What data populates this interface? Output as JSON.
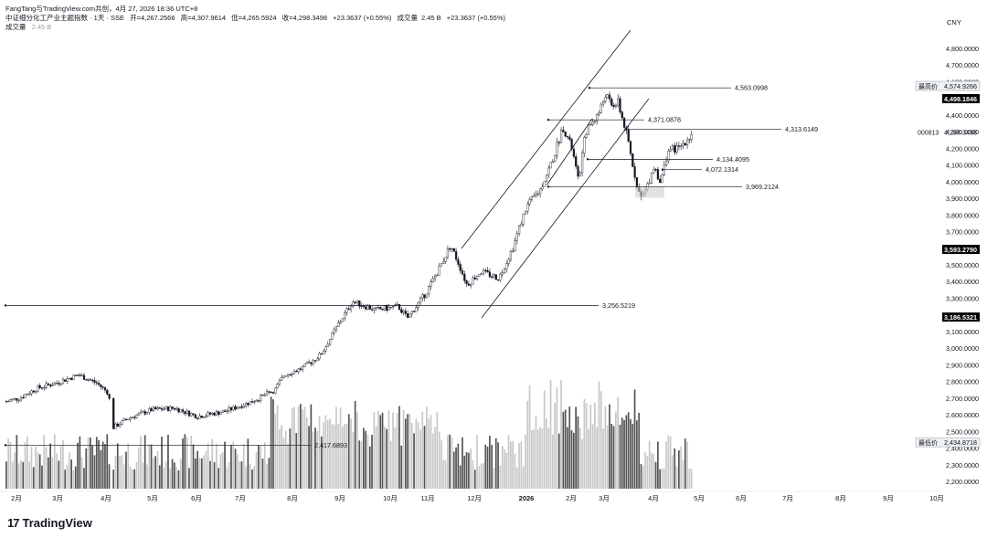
{
  "header": {
    "author": "FangTang与TradingView.com共创，4月 27, 2026 18:36 UTC+8",
    "symbol": "中证细分化工产业主题指数 · 1天 · SSE",
    "open": "开=4,267.2566",
    "high": "高=4,307.9614",
    "low": "低=4,265.5924",
    "close": "收=4,298.3498",
    "change": "+23.3637 (+0.55%)",
    "volume_label": "成交量",
    "volume_inline": "2.45 B",
    "volume_change": "+23.3637 (+0.55%)",
    "volume_row_label": "成交量",
    "volume_row_value": "2.45 B"
  },
  "currency": "CNY",
  "logo": {
    "mark": "17",
    "text": "TradingView"
  },
  "colors": {
    "up_candle": "#ffffff",
    "down_candle": "#131722",
    "line": "#131722",
    "vol_light": "#c8c8c8",
    "vol_dark": "#555555",
    "axis_text": "#131722",
    "label_black": "#000000"
  },
  "chart_data": {
    "type": "candlestick",
    "symbol_code": "000813",
    "last_price": "4,298.3498",
    "y_axis": {
      "min": 2200000,
      "max": 4900000,
      "ticks": [
        "4,800.0000",
        "4,700.0000",
        "4,600.0000",
        "4,500.0000",
        "4,400.0000",
        "4,300.0000",
        "4,200.0000",
        "4,100.0000",
        "4,000.0000",
        "3,900.0000",
        "3,800.0000",
        "3,700.0000",
        "3,600.0000",
        "3,500.0000",
        "3,400.0000",
        "3,300.0000",
        "3,200.0000",
        "3,100.0000",
        "3,000.0000",
        "2,900.0000",
        "2,800.0000",
        "2,700.0000",
        "2,600.0000",
        "2,500.0000",
        "2,400.0000",
        "2,300.0000",
        "2,200.0000"
      ]
    },
    "x_axis": {
      "ticks": [
        "2月",
        "3月",
        "4月",
        "5月",
        "6月",
        "7月",
        "8月",
        "9月",
        "10月",
        "11月",
        "12月",
        "2026",
        "2月",
        "3月",
        "4月",
        "5月",
        "6月",
        "7月",
        "8月",
        "9月",
        "10月"
      ]
    },
    "axis_labels": [
      {
        "text": "最高价",
        "value": "4,574.9266",
        "price": 4574.9266,
        "style": "outline"
      },
      {
        "text": "",
        "value": "4,498.1846",
        "price": 4498.1846,
        "style": "black"
      },
      {
        "text": "000813",
        "value": "4,298.3498",
        "price": 4298.3498,
        "style": "plain"
      },
      {
        "text": "",
        "value": "3,593.2790",
        "price": 3593.279,
        "style": "black"
      },
      {
        "text": "",
        "value": "3,186.5321",
        "price": 3186.5321,
        "style": "black"
      },
      {
        "text": "最低价",
        "value": "2,434.8718",
        "price": 2434.8718,
        "style": "outline"
      }
    ],
    "horizontal_levels": [
      {
        "label": "4,563.0998",
        "price": 4563.0998
      },
      {
        "label": "4,371.0878",
        "price": 4371.0878
      },
      {
        "label": "4,313.6149",
        "price": 4313.6149
      },
      {
        "label": "4,134.4095",
        "price": 4134.4095
      },
      {
        "label": "4,072.1314",
        "price": 4072.1314
      },
      {
        "label": "3,969.2124",
        "price": 3969.2124
      },
      {
        "label": "3,256.5219",
        "price": 3256.5219
      },
      {
        "label": "2,417.6893",
        "price": 2417.6893
      }
    ],
    "price_series": [
      [
        "2月",
        2680
      ],
      [
        "2月",
        2740
      ],
      [
        "3月",
        2760
      ],
      [
        "3月",
        2800
      ],
      [
        "3月",
        2830
      ],
      [
        "4月",
        2740
      ],
      [
        "4月",
        2560
      ],
      [
        "4月",
        2580
      ],
      [
        "5月",
        2620
      ],
      [
        "5月",
        2640
      ],
      [
        "6月",
        2600
      ],
      [
        "6月",
        2590
      ],
      [
        "7月",
        2640
      ],
      [
        "7月",
        2700
      ],
      [
        "8月",
        2820
      ],
      [
        "8月",
        2880
      ],
      [
        "8月",
        2900
      ],
      [
        "9月",
        3080
      ],
      [
        "9月",
        3250
      ],
      [
        "10月",
        3180
      ],
      [
        "10月",
        3300
      ],
      [
        "11月",
        3420
      ],
      [
        "11月",
        3600
      ],
      [
        "11月",
        3520
      ],
      [
        "12月",
        3460
      ],
      [
        "12月",
        3500
      ],
      [
        "2026",
        3700
      ],
      [
        "2026",
        3950
      ],
      [
        "2月",
        4300
      ],
      [
        "2月",
        4050
      ],
      [
        "3月",
        4500
      ],
      [
        "3月",
        4480
      ],
      [
        "3月",
        4150
      ],
      [
        "4月",
        3920
      ],
      [
        "4月",
        4100
      ],
      [
        "4月",
        4230
      ],
      [
        "5月",
        4298
      ]
    ]
  }
}
